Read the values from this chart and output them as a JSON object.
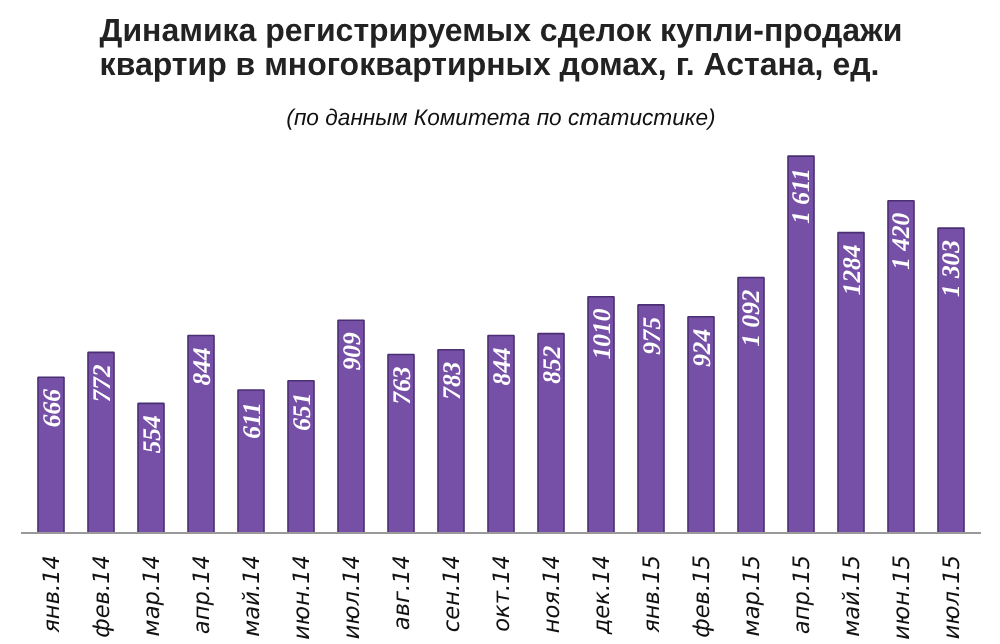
{
  "chart_data": {
    "type": "bar",
    "title": "Динамика регистрируемых сделок купли-продажи квартир в многоквартирных домах, г. Астана, ед.",
    "subtitle": "(по данным Комитета по статистике)",
    "categories": [
      "янв.14",
      "фев.14",
      "мар.14",
      "апр.14",
      "май.14",
      "июн.14",
      "июл.14",
      "авг.14",
      "сен.14",
      "окт.14",
      "ноя.14",
      "дек.14",
      "янв.15",
      "фев.15",
      "мар.15",
      "апр.15",
      "май.15",
      "июн.15",
      "июл.15"
    ],
    "values": [
      666,
      772,
      554,
      844,
      611,
      651,
      909,
      763,
      783,
      844,
      852,
      1010,
      975,
      924,
      1092,
      1611,
      1284,
      1420,
      1303
    ],
    "value_labels": [
      "666",
      "772",
      "554",
      "844",
      "611",
      "651",
      "909",
      "763",
      "783",
      "844",
      "852",
      "1010",
      "975",
      "924",
      "1 092",
      "1 611",
      "1284",
      "1 420",
      "1 303"
    ],
    "color": "#7650a6",
    "grid": false
  }
}
